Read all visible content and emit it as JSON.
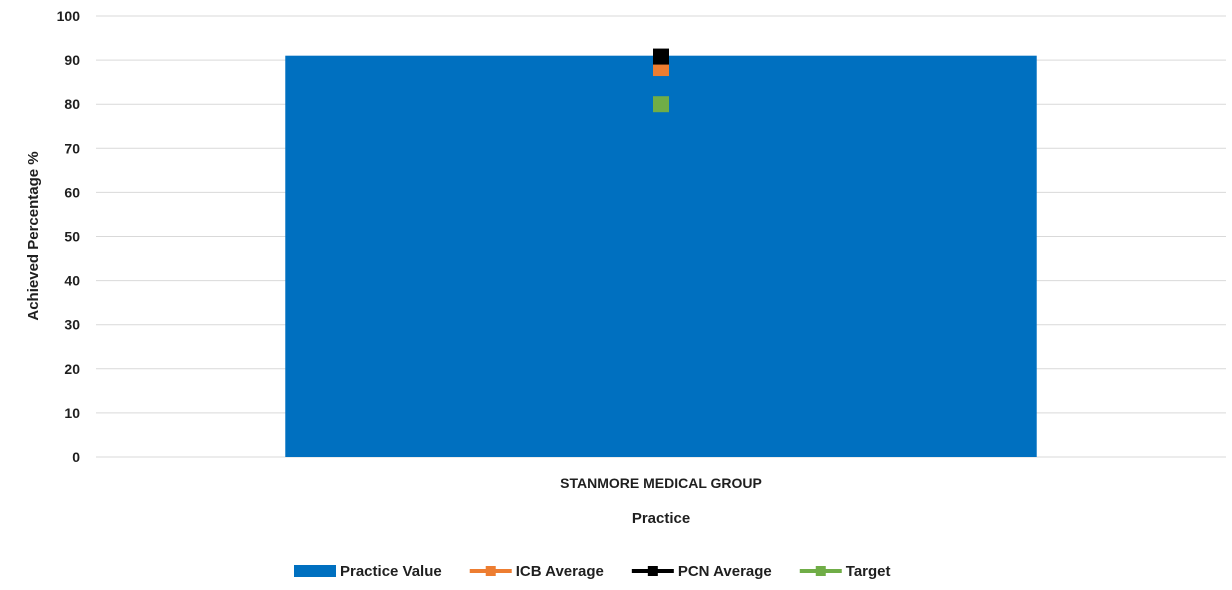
{
  "chart_data": {
    "type": "bar",
    "title": "",
    "xlabel": "Practice",
    "ylabel": "Achieved Percentage %",
    "categories": [
      "STANMORE MEDICAL GROUP"
    ],
    "ylim": [
      0,
      100
    ],
    "y_ticks": [
      0,
      10,
      20,
      30,
      40,
      50,
      60,
      70,
      80,
      90,
      100
    ],
    "grid": true,
    "legend_position": "bottom",
    "series": [
      {
        "name": "Practice Value",
        "kind": "bar",
        "color": "#0070C0",
        "values": [
          91
        ]
      },
      {
        "name": "ICB Average",
        "kind": "marker",
        "color": "#ED7D31",
        "values": [
          88.2
        ]
      },
      {
        "name": "PCN Average",
        "kind": "marker",
        "color": "#000000",
        "values": [
          90.8
        ]
      },
      {
        "name": "Target",
        "kind": "marker",
        "color": "#70AD47",
        "values": [
          80
        ]
      }
    ]
  }
}
